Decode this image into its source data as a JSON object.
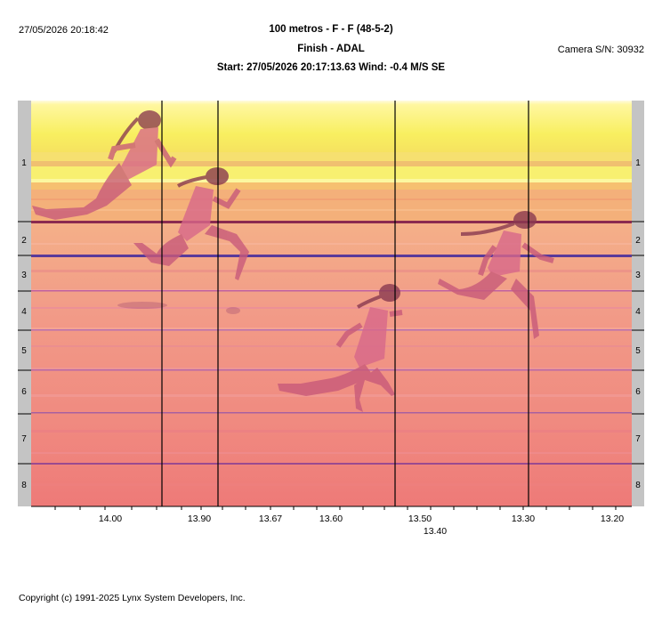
{
  "header": {
    "datetime": "27/05/2026 20:18:42",
    "race_title": "100 metros - F - F (48-5-2)",
    "subtitle": "Finish - ADAL",
    "start_info": "Start: 27/05/2026 20:17:13.63    Wind: -0.4 M/S SE",
    "camera": "Camera S/N: 30932"
  },
  "lanes": [
    "1",
    "2",
    "3",
    "4",
    "5",
    "6",
    "7",
    "8"
  ],
  "time_axis": {
    "labels": [
      "14.00",
      "13.90",
      "13.67",
      "13.60",
      "13.50",
      "13.40",
      "13.30",
      "13.20"
    ]
  },
  "footer": {
    "copyright": "Copyright (c) 1991-2025 Lynx System Developers, Inc."
  },
  "colors": {
    "sky_yellow": "#f8f060",
    "track_pink": "#f09088",
    "lane_line_dark": "#8a2a50",
    "lane_line_blue": "#5a3a9a",
    "side_bar": "#c0c0c0",
    "runner": "#c85a7a"
  }
}
